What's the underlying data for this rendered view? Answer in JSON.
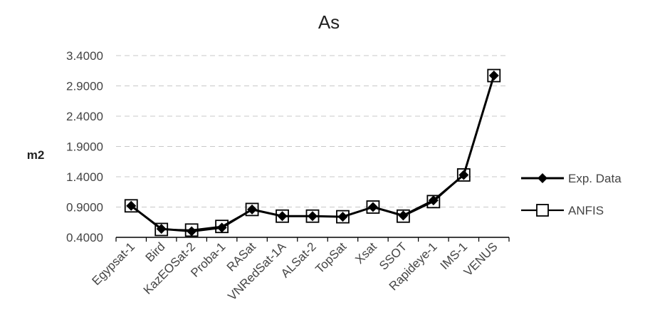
{
  "chart_data": {
    "type": "line",
    "title": "As",
    "xlabel": "",
    "ylabel": "m2",
    "ylim": [
      0.4,
      3.4
    ],
    "yticks": [
      "0.4000",
      "0.9000",
      "1.4000",
      "1.9000",
      "2.4000",
      "2.9000",
      "3.4000"
    ],
    "ytick_values": [
      0.4,
      0.9,
      1.4,
      1.9,
      2.4,
      2.9,
      3.4
    ],
    "grid": true,
    "legend_position": "right",
    "categories": [
      "Egypsat-1",
      "Bird",
      "KazEOSat-2",
      "Proba-1",
      "RASat",
      "VNRedSat-1A",
      "ALSat-2",
      "TopSat",
      "Xsat",
      "SSOT",
      "Rapideye-1",
      "IMS-1",
      "VENUS"
    ],
    "series": [
      {
        "name": "Exp. Data",
        "marker": "diamond-filled",
        "color": "#000000",
        "values": [
          0.92,
          0.54,
          0.5,
          0.56,
          0.86,
          0.75,
          0.75,
          0.74,
          0.9,
          0.76,
          1.01,
          1.43,
          3.07
        ]
      },
      {
        "name": "ANFIS",
        "marker": "square-open",
        "color": "#000000",
        "values": [
          0.92,
          0.53,
          0.52,
          0.58,
          0.86,
          0.75,
          0.75,
          0.74,
          0.9,
          0.75,
          0.99,
          1.43,
          3.07
        ]
      }
    ]
  }
}
